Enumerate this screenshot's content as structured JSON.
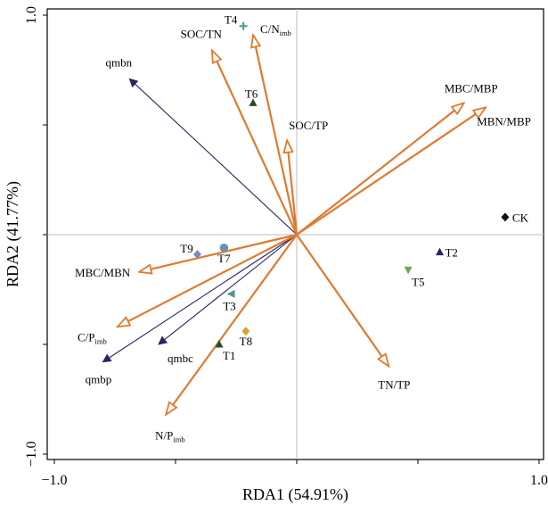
{
  "chart_data": {
    "type": "scatter",
    "subtype": "rda-biplot",
    "title": "",
    "xlabel": "RDA1 (54.91%)",
    "ylabel": "RDA2 (41.77%)",
    "xlim": [
      -1.0,
      1.0
    ],
    "ylim": [
      -1.0,
      1.0
    ],
    "xticks": [
      -1.0,
      1.0
    ],
    "yticks": [
      -1.0,
      1.0
    ],
    "xtick_labels": [
      "−1.0",
      "1.0"
    ],
    "ytick_labels": [
      "−1.0",
      "1.0"
    ],
    "grid": false,
    "reference_lines": [
      0,
      0
    ],
    "colors": {
      "response": "#2b2366",
      "explanatory": "#e07a2e"
    },
    "response_vectors": [
      {
        "name": "qmbn",
        "x": -0.69,
        "y": 0.71
      },
      {
        "name": "qmbc",
        "x": -0.57,
        "y": -0.5
      },
      {
        "name": "qmbp",
        "x": -0.8,
        "y": -0.58
      }
    ],
    "explanatory_vectors": [
      {
        "name": "SOC/TN",
        "base": "SOC/TN",
        "sub": "",
        "x": -0.35,
        "y": 0.84
      },
      {
        "name": "C/Nimb",
        "base": "C/N",
        "sub": "imb",
        "x": -0.18,
        "y": 0.91
      },
      {
        "name": "SOC/TP",
        "base": "SOC/TP",
        "sub": "",
        "x": -0.04,
        "y": 0.43
      },
      {
        "name": "MBC/MBP",
        "base": "MBC/MBP",
        "sub": "",
        "x": 0.69,
        "y": 0.6
      },
      {
        "name": "MBN/MBP",
        "base": "MBN/MBP",
        "sub": "",
        "x": 0.78,
        "y": 0.58
      },
      {
        "name": "MBC/MBN",
        "base": "MBC/MBN",
        "sub": "",
        "x": -0.65,
        "y": -0.17
      },
      {
        "name": "C/Pimb",
        "base": "C/P",
        "sub": "imb",
        "x": -0.74,
        "y": -0.42
      },
      {
        "name": "N/Pimb",
        "base": "N/P",
        "sub": "imb",
        "x": -0.54,
        "y": -0.82
      },
      {
        "name": "TN/TP",
        "base": "TN/TP",
        "sub": "",
        "x": 0.38,
        "y": -0.6
      }
    ],
    "sites": [
      {
        "name": "CK",
        "x": 0.86,
        "y": 0.08,
        "marker": "diamond",
        "color": "#111111"
      },
      {
        "name": "T1",
        "x": -0.32,
        "y": -0.5,
        "marker": "triangle-up",
        "color": "#1f4f2a"
      },
      {
        "name": "T2",
        "x": 0.59,
        "y": -0.08,
        "marker": "triangle-up",
        "color": "#2b2366"
      },
      {
        "name": "T3",
        "x": -0.27,
        "y": -0.27,
        "marker": "triangle-left",
        "color": "#4f9a86"
      },
      {
        "name": "T4",
        "x": -0.22,
        "y": 0.95,
        "marker": "plus",
        "color": "#3aa382"
      },
      {
        "name": "T5",
        "x": 0.46,
        "y": -0.16,
        "marker": "triangle-down",
        "color": "#6ea84f"
      },
      {
        "name": "T6",
        "x": -0.18,
        "y": 0.6,
        "marker": "triangle-up",
        "color": "#2d4a2a"
      },
      {
        "name": "T7",
        "x": -0.3,
        "y": -0.06,
        "marker": "circle",
        "color": "#6b8fb8"
      },
      {
        "name": "T8",
        "x": -0.21,
        "y": -0.44,
        "marker": "diamond",
        "color": "#d9a237"
      },
      {
        "name": "T9",
        "x": -0.41,
        "y": -0.09,
        "marker": "diamond",
        "color": "#7d87c4"
      }
    ]
  }
}
